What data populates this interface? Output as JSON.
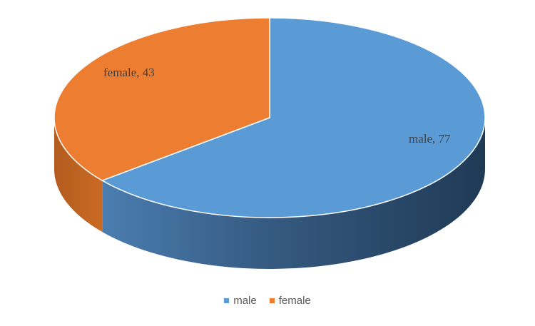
{
  "chart_data": {
    "type": "pie",
    "style": "3d",
    "categories": [
      "male",
      "female"
    ],
    "values": [
      77,
      43
    ],
    "data_labels": [
      "male, 77",
      "female, 43"
    ],
    "legend": {
      "position": "bottom",
      "entries": [
        "male",
        "female"
      ]
    },
    "colors": {
      "male": "#5B9BD5",
      "female": "#ED7D31",
      "male_side": "#2E4E6E",
      "female_side": "#B35C1E"
    }
  }
}
